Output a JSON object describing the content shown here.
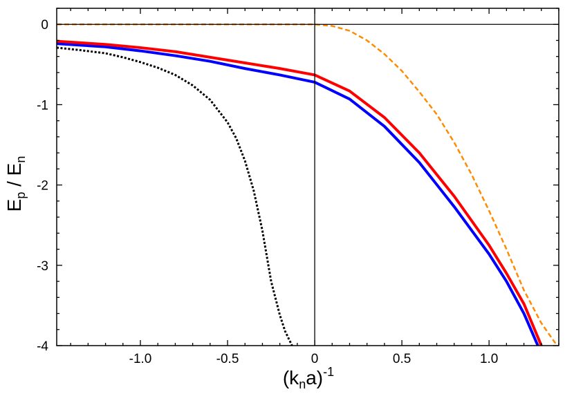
{
  "chart_data": {
    "type": "line",
    "xlabel": {
      "base": "(k",
      "sub": "n",
      "mid": "a)",
      "sup": "-1"
    },
    "ylabel": {
      "e1": "E",
      "sub1": "p",
      "sep": " / E",
      "sub2": "n"
    },
    "xlim": [
      -1.48,
      1.4
    ],
    "ylim": [
      -4,
      0.2
    ],
    "x_ticks": [
      -1.0,
      -0.5,
      0,
      0.5,
      1.0
    ],
    "x_tick_labels": [
      "-1.0",
      "-0.5",
      "0",
      "0.5",
      "1.0"
    ],
    "y_ticks": [
      0,
      -1,
      -2,
      -3,
      -4
    ],
    "y_tick_labels": [
      "0",
      "-1",
      "-2",
      "-3",
      "-4"
    ],
    "grid": false,
    "reference_lines": {
      "horizontal_at_y": 0,
      "vertical_at_x": 0
    },
    "series": [
      {
        "color": "#000000",
        "style": "dotted",
        "width": 3,
        "points": [
          [
            -1.48,
            -0.29
          ],
          [
            -1.35,
            -0.32
          ],
          [
            -1.2,
            -0.36
          ],
          [
            -1.1,
            -0.41
          ],
          [
            -1.0,
            -0.47
          ],
          [
            -0.9,
            -0.54
          ],
          [
            -0.8,
            -0.63
          ],
          [
            -0.7,
            -0.76
          ],
          [
            -0.6,
            -0.94
          ],
          [
            -0.5,
            -1.22
          ],
          [
            -0.45,
            -1.42
          ],
          [
            -0.4,
            -1.7
          ],
          [
            -0.35,
            -2.07
          ],
          [
            -0.3,
            -2.57
          ],
          [
            -0.25,
            -3.2
          ],
          [
            -0.2,
            -3.62
          ],
          [
            -0.17,
            -3.82
          ],
          [
            -0.13,
            -4.0
          ]
        ]
      },
      {
        "color": "#0000ff",
        "style": "solid",
        "width": 4,
        "points": [
          [
            -1.48,
            -0.24
          ],
          [
            -1.2,
            -0.28
          ],
          [
            -1.0,
            -0.33
          ],
          [
            -0.8,
            -0.39
          ],
          [
            -0.6,
            -0.46
          ],
          [
            -0.4,
            -0.55
          ],
          [
            -0.2,
            -0.63
          ],
          [
            0,
            -0.72
          ],
          [
            0.2,
            -0.93
          ],
          [
            0.4,
            -1.27
          ],
          [
            0.6,
            -1.72
          ],
          [
            0.8,
            -2.27
          ],
          [
            1.0,
            -2.86
          ],
          [
            1.1,
            -3.2
          ],
          [
            1.2,
            -3.6
          ],
          [
            1.28,
            -4.0
          ]
        ]
      },
      {
        "color": "#ff0000",
        "style": "solid",
        "width": 4,
        "points": [
          [
            -1.48,
            -0.21
          ],
          [
            -1.2,
            -0.25
          ],
          [
            -1.0,
            -0.29
          ],
          [
            -0.8,
            -0.34
          ],
          [
            -0.6,
            -0.41
          ],
          [
            -0.4,
            -0.48
          ],
          [
            -0.2,
            -0.55
          ],
          [
            0,
            -0.63
          ],
          [
            0.2,
            -0.83
          ],
          [
            0.4,
            -1.16
          ],
          [
            0.6,
            -1.6
          ],
          [
            0.8,
            -2.14
          ],
          [
            1.0,
            -2.75
          ],
          [
            1.1,
            -3.1
          ],
          [
            1.2,
            -3.48
          ],
          [
            1.3,
            -4.0
          ]
        ]
      },
      {
        "color": "#ff8c00",
        "style": "dashed",
        "width": 2.5,
        "points": [
          [
            -1.48,
            0
          ],
          [
            0,
            0
          ],
          [
            0.1,
            -0.02
          ],
          [
            0.2,
            -0.08
          ],
          [
            0.3,
            -0.2
          ],
          [
            0.4,
            -0.37
          ],
          [
            0.5,
            -0.58
          ],
          [
            0.6,
            -0.84
          ],
          [
            0.7,
            -1.12
          ],
          [
            0.8,
            -1.47
          ],
          [
            0.9,
            -1.87
          ],
          [
            1.0,
            -2.32
          ],
          [
            1.1,
            -2.8
          ],
          [
            1.2,
            -3.31
          ],
          [
            1.3,
            -3.72
          ],
          [
            1.39,
            -4.0
          ]
        ]
      }
    ]
  }
}
